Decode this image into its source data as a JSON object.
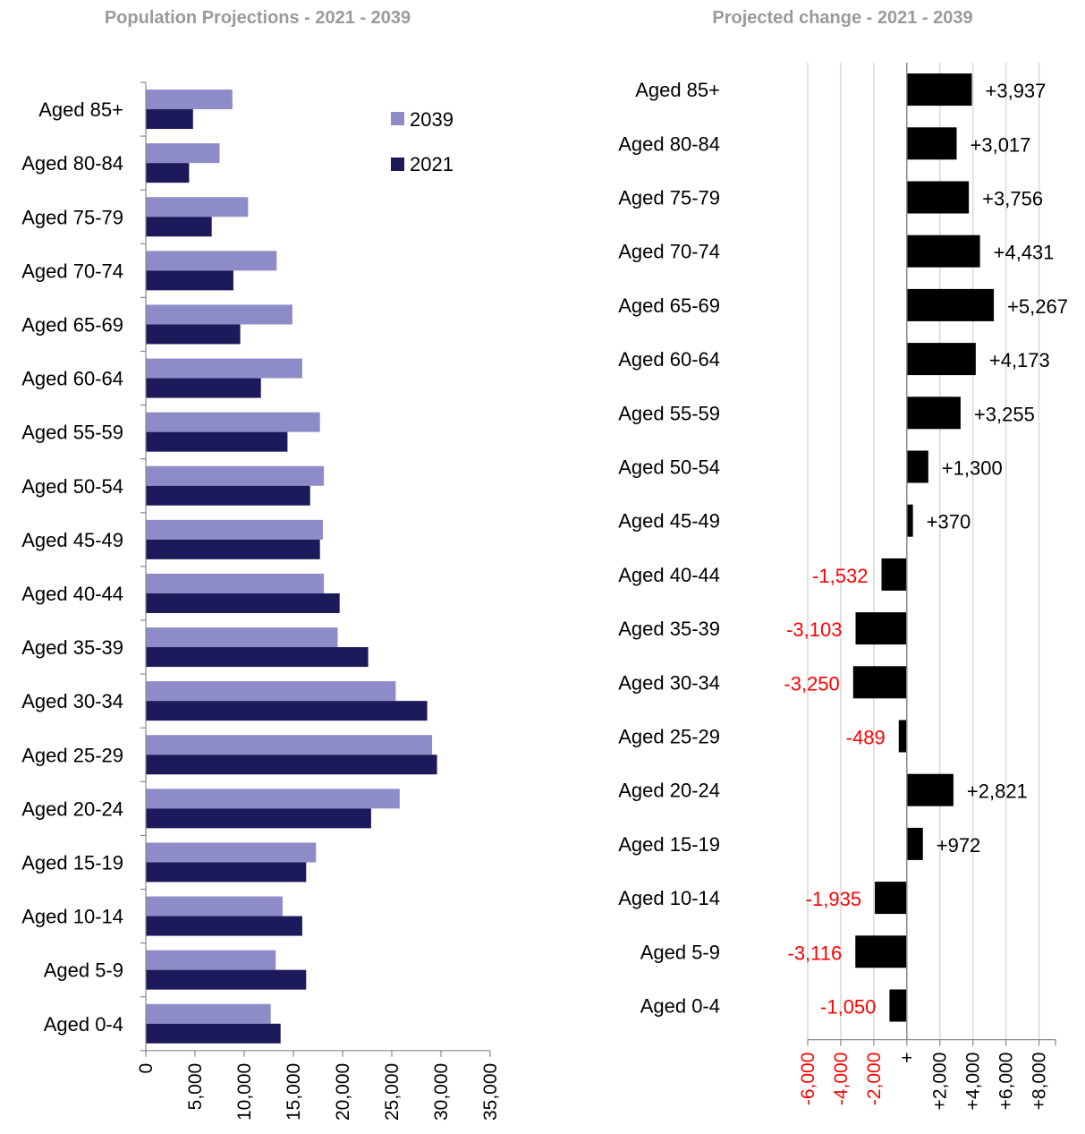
{
  "chart_data": [
    {
      "type": "bar",
      "orientation": "horizontal",
      "title": "Population Projections - 2021 - 2039",
      "categories": [
        "Aged 85+",
        "Aged 80-84",
        "Aged 75-79",
        "Aged 70-74",
        "Aged 65-69",
        "Aged 60-64",
        "Aged 55-59",
        "Aged 50-54",
        "Aged 45-49",
        "Aged 40-44",
        "Aged 35-39",
        "Aged 30-34",
        "Aged 25-29",
        "Aged 20-24",
        "Aged 15-19",
        "Aged 10-14",
        "Aged 5-9",
        "Aged 0-4"
      ],
      "series": [
        {
          "name": "2039",
          "color": "#8e8cc8",
          "values": [
            8800,
            7500,
            10400,
            13300,
            14900,
            15900,
            17700,
            18100,
            18000,
            18100,
            19500,
            25400,
            29100,
            25800,
            17300,
            13900,
            13200,
            12700
          ]
        },
        {
          "name": "2021",
          "color": "#1c1a5a",
          "values": [
            4800,
            4400,
            6700,
            8900,
            9600,
            11700,
            14400,
            16700,
            17700,
            19700,
            22600,
            28600,
            29600,
            22900,
            16300,
            15900,
            16300,
            13700
          ]
        }
      ],
      "xlim": [
        0,
        35000
      ],
      "ticks": [
        "0",
        "5,000",
        "10,000",
        "15,000",
        "20,000",
        "25,000",
        "30,000",
        "35,000"
      ],
      "legend": [
        "2039",
        "2021"
      ],
      "legend_position": "top-right",
      "grid": false
    },
    {
      "type": "bar",
      "orientation": "horizontal",
      "title": "Projected change - 2021 - 2039",
      "categories": [
        "Aged 85+",
        "Aged 80-84",
        "Aged 75-79",
        "Aged 70-74",
        "Aged 65-69",
        "Aged 60-64",
        "Aged 55-59",
        "Aged 50-54",
        "Aged 45-49",
        "Aged 40-44",
        "Aged 35-39",
        "Aged 30-34",
        "Aged 25-29",
        "Aged 20-24",
        "Aged 15-19",
        "Aged 10-14",
        "Aged 5-9",
        "Aged 0-4"
      ],
      "values": [
        3937,
        3017,
        3756,
        4431,
        5267,
        4173,
        3255,
        1300,
        370,
        -1532,
        -3103,
        -3250,
        -489,
        2821,
        972,
        -1935,
        -3116,
        -1050
      ],
      "data_labels": [
        "+3,937",
        "+3,017",
        "+3,756",
        "+4,431",
        "+5,267",
        "+4,173",
        "+3,255",
        "+1,300",
        "+370",
        "-1,532",
        "-3,103",
        "-3,250",
        "-489",
        "+2,821",
        "+972",
        "-1,935",
        "-3,116",
        "-1,050"
      ],
      "xlim": [
        -6000,
        9000
      ],
      "ticks": [
        "-6,000",
        "-4,000",
        "-2,000",
        "+",
        "+2,000",
        "+4,000",
        "+6,000",
        "+8,000"
      ],
      "grid": true,
      "colors": {
        "bar": "#000000",
        "positive_label": "#000000",
        "negative_label": "#ff0000",
        "gridline": "#d9d9d9"
      }
    }
  ]
}
